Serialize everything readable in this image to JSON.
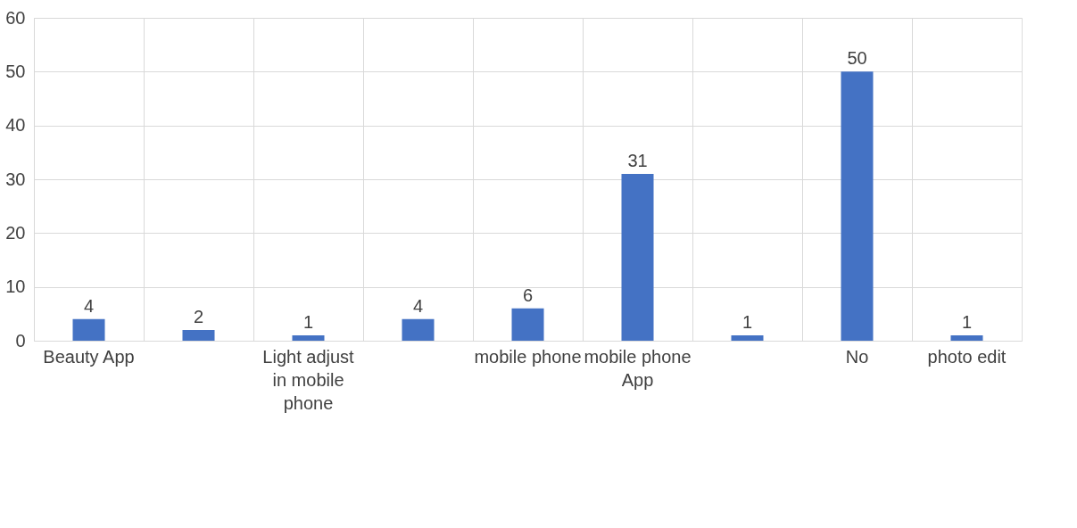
{
  "chart_data": {
    "type": "bar",
    "categories": [
      "Beauty App",
      null,
      "Light adjust in mobile phone",
      null,
      "mobile phone",
      "mobile phone App",
      null,
      "No",
      "photo edit"
    ],
    "values": [
      4,
      2,
      1,
      4,
      6,
      31,
      1,
      50,
      1
    ],
    "color": "#4472c4",
    "ylim": [
      0,
      60
    ],
    "yticks": [
      0,
      10,
      20,
      30,
      40,
      50,
      60
    ],
    "grid": true,
    "data_labels": true
  }
}
